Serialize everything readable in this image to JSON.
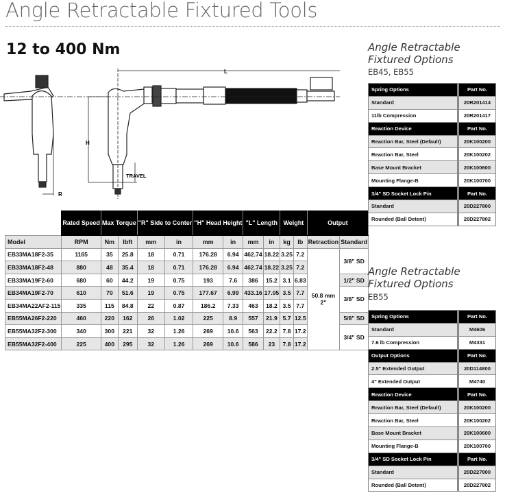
{
  "title": "Angle Retractable Fixtured Tools",
  "subtitle": "12 to 400 Nm",
  "diagram": {
    "label_L": "L",
    "label_H": "H",
    "label_R": "R",
    "label_travel": "TRAVEL"
  },
  "main_table": {
    "group_headers": [
      "Rated Speed",
      "Max Torque",
      "\"R\" Side to Center",
      "\"H\" Head Height",
      "\"L\" Length",
      "Weight",
      "Output"
    ],
    "columns": [
      "Model",
      "RPM",
      "Nm",
      "lbft",
      "mm",
      "in",
      "mm",
      "in",
      "mm",
      "in",
      "kg",
      "lb",
      "Retraction",
      "Standard"
    ],
    "rows": [
      [
        "EB33MA18F2-35",
        "1165",
        "35",
        "25.8",
        "18",
        "0.71",
        "176.28",
        "6.94",
        "462.74",
        "18.22",
        "3.25",
        "7.2"
      ],
      [
        "EB33MA18F2-48",
        "880",
        "48",
        "35.4",
        "18",
        "0.71",
        "176.28",
        "6.94",
        "462.74",
        "18.22",
        "3.25",
        "7.2"
      ],
      [
        "EB33MA19F2-60",
        "680",
        "60",
        "44.2",
        "19",
        "0.75",
        "193",
        "7.6",
        "386",
        "15.2",
        "3.1",
        "6.83"
      ],
      [
        "EB34MA19F2-70",
        "610",
        "70",
        "51.6",
        "19",
        "0.75",
        "177.67",
        "6.99",
        "433.16",
        "17.05",
        "3.5",
        "7.7"
      ],
      [
        "EB34MA22AF2-115",
        "335",
        "115",
        "84.8",
        "22",
        "0.87",
        "186.2",
        "7.33",
        "463",
        "18.2",
        "3.5",
        "7.7"
      ],
      [
        "EB55MA26F2-220",
        "460",
        "220",
        "162",
        "26",
        "1.02",
        "225",
        "8.9",
        "557",
        "21.9",
        "5.7",
        "12.5"
      ],
      [
        "EB55MA32F2-300",
        "340",
        "300",
        "221",
        "32",
        "1.26",
        "269",
        "10.6",
        "563",
        "22.2",
        "7.8",
        "17.2"
      ],
      [
        "EB55MA32F2-400",
        "225",
        "400",
        "295",
        "32",
        "1.26",
        "269",
        "10.6",
        "586",
        "23",
        "7.8",
        "17.2"
      ]
    ],
    "retraction": {
      "mm": "50.8 mm",
      "in": "2\""
    },
    "standard": [
      {
        "value": "3/8\" SD",
        "rows": 2
      },
      {
        "value": "1/2\" SD",
        "rows": 1
      },
      {
        "value": "3/8\" SD",
        "rows": 2
      },
      {
        "value": "5/8\" SD",
        "rows": 1
      },
      {
        "value": "3/4\" SD",
        "rows": 2
      }
    ]
  },
  "options": [
    {
      "title": "Angle Retractable Fixtured Options",
      "models": "EB45, EB55",
      "sections": [
        {
          "header": "Spring Options",
          "part_header": "Part No.",
          "items": [
            [
              "Standard",
              "20R201414"
            ],
            [
              "11lb Compression",
              "20R201417"
            ]
          ]
        },
        {
          "header": "Reaction Device",
          "part_header": "Part No.",
          "items": [
            [
              "Reaction Bar, Steel (Default)",
              "20K100200"
            ],
            [
              "Reaction Bar, Steel",
              "20K100202"
            ],
            [
              "Base Mount Bracket",
              "20K100600"
            ],
            [
              "Mounting Flange-B",
              "20K100700"
            ]
          ]
        },
        {
          "header": "3/4\" SD Socket Lock Pin",
          "part_header": "Part No.",
          "items": [
            [
              "Standard",
              "20D227800"
            ],
            [
              "Rounded (Ball Detent)",
              "20D227802"
            ]
          ]
        }
      ]
    },
    {
      "title": "Angle Retractable Fixtured Options",
      "models": "EB55",
      "sections": [
        {
          "header": "Spring Options",
          "part_header": "Part No.",
          "items": [
            [
              "Standard",
              "M4606"
            ],
            [
              "7.6 lb Compression",
              "M4331"
            ]
          ]
        },
        {
          "header": "Output Options",
          "part_header": "Part No.",
          "items": [
            [
              "2.5\" Extended Output",
              "20D114800"
            ],
            [
              "4\" Extended Output",
              "M4740"
            ]
          ]
        },
        {
          "header": "Reaction Device",
          "part_header": "Part No.",
          "items": [
            [
              "Reaction Bar, Steel (Default)",
              "20K100200"
            ],
            [
              "Reaction Bar, Steel",
              "20K100202"
            ],
            [
              "Base Mount Bracket",
              "20K100600"
            ],
            [
              "Mounting Flange-B",
              "20K100700"
            ]
          ]
        },
        {
          "header": "3/4\" SD Socket Lock Pin",
          "part_header": "Part No.",
          "items": [
            [
              "Standard",
              "20D227800"
            ],
            [
              "Rounded (Ball Detent)",
              "20D227802"
            ]
          ]
        }
      ]
    }
  ]
}
